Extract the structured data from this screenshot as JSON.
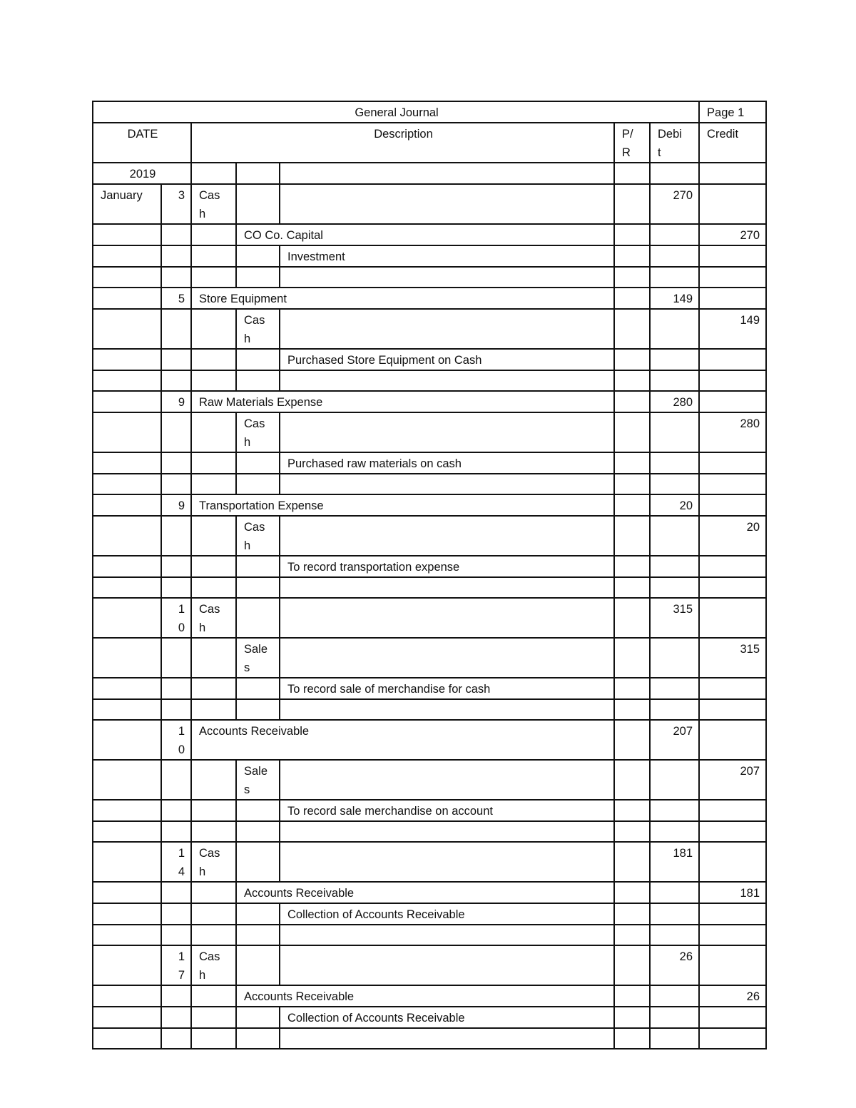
{
  "journal": {
    "title": "General Journal",
    "page": "Page 1",
    "headers": {
      "date": "DATE",
      "description": "Description",
      "pr": "P/R",
      "debit": "Debit",
      "credit": "Credit"
    },
    "year": "2019",
    "rows": [
      {
        "month": "January",
        "day": "3",
        "col2": "Cash",
        "debit": "270"
      },
      {
        "col3": "CO Co. Capital",
        "credit": "270"
      },
      {
        "col4": "Investment"
      },
      {},
      {
        "day": "5",
        "col2": "Store Equipment",
        "debit": "149"
      },
      {
        "col3": "Cash",
        "credit": "149"
      },
      {
        "col4": "Purchased Store Equipment on Cash"
      },
      {},
      {
        "day": "9",
        "col2": "Raw Materials Expense",
        "debit": "280"
      },
      {
        "col3": "Cash",
        "credit": "280"
      },
      {
        "col4": "Purchased raw materials on cash"
      },
      {},
      {
        "day": "9",
        "col2": "Transportation Expense",
        "debit": "20"
      },
      {
        "col3": "Cash",
        "credit": "20"
      },
      {
        "col4": "To record transportation expense"
      },
      {},
      {
        "day": "10",
        "col2": "Cash",
        "debit": "315"
      },
      {
        "col3": "Sales",
        "credit": "315"
      },
      {
        "col4": "To record sale of merchandise for cash"
      },
      {},
      {
        "day": "10",
        "col2": "Accounts Receivable",
        "debit": "207"
      },
      {
        "col3": "Sales",
        "credit": "207"
      },
      {
        "col4": "To record sale merchandise on account"
      },
      {},
      {
        "day": "14",
        "col2": "Cash",
        "debit": "181"
      },
      {
        "col3": "Accounts Receivable",
        "credit": "181"
      },
      {
        "col4": "Collection of Accounts Receivable"
      },
      {},
      {
        "day": "17",
        "col2": "Cash",
        "debit": "26"
      },
      {
        "col3": "Accounts Receivable",
        "credit": "26"
      },
      {
        "col4": "Collection of Accounts Receivable"
      },
      {}
    ]
  }
}
